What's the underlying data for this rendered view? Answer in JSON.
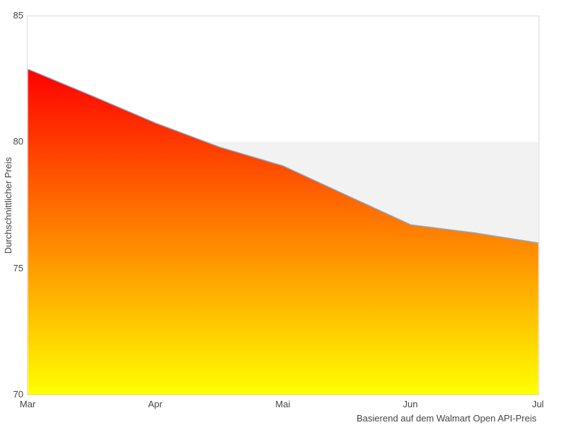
{
  "chart_data": {
    "type": "area",
    "title": "",
    "categories": [
      "Mar",
      "Apr",
      "Mai",
      "Jun",
      "Jul"
    ],
    "values": [
      82.9,
      80.8,
      79.1,
      76.7,
      76.0
    ],
    "curve_samples": [
      [
        0,
        82.88
      ],
      [
        0.5,
        81.83
      ],
      [
        1,
        80.75
      ],
      [
        1.5,
        79.8
      ],
      [
        2,
        79.05
      ],
      [
        2.5,
        77.88
      ],
      [
        3,
        76.72
      ],
      [
        3.5,
        76.4
      ],
      [
        4,
        76.0
      ]
    ],
    "xlabel": "",
    "ylabel": "Durchschnittlicher Preis",
    "caption": "Basierend auf dem Walmart Open API-Preis",
    "ylim": [
      70,
      85
    ],
    "y_ticks_display": [
      "85",
      "80",
      "75",
      "70"
    ],
    "reference_level": 80,
    "legend": "none",
    "grid": "off",
    "colors": {
      "gradient_top": "#ff0000",
      "gradient_mid": "#ff8000",
      "gradient_bottom": "#ffff00",
      "line": "#8aabce",
      "band": "#f2f2f2",
      "border": "#d9d9d9",
      "text": "#444444"
    }
  }
}
